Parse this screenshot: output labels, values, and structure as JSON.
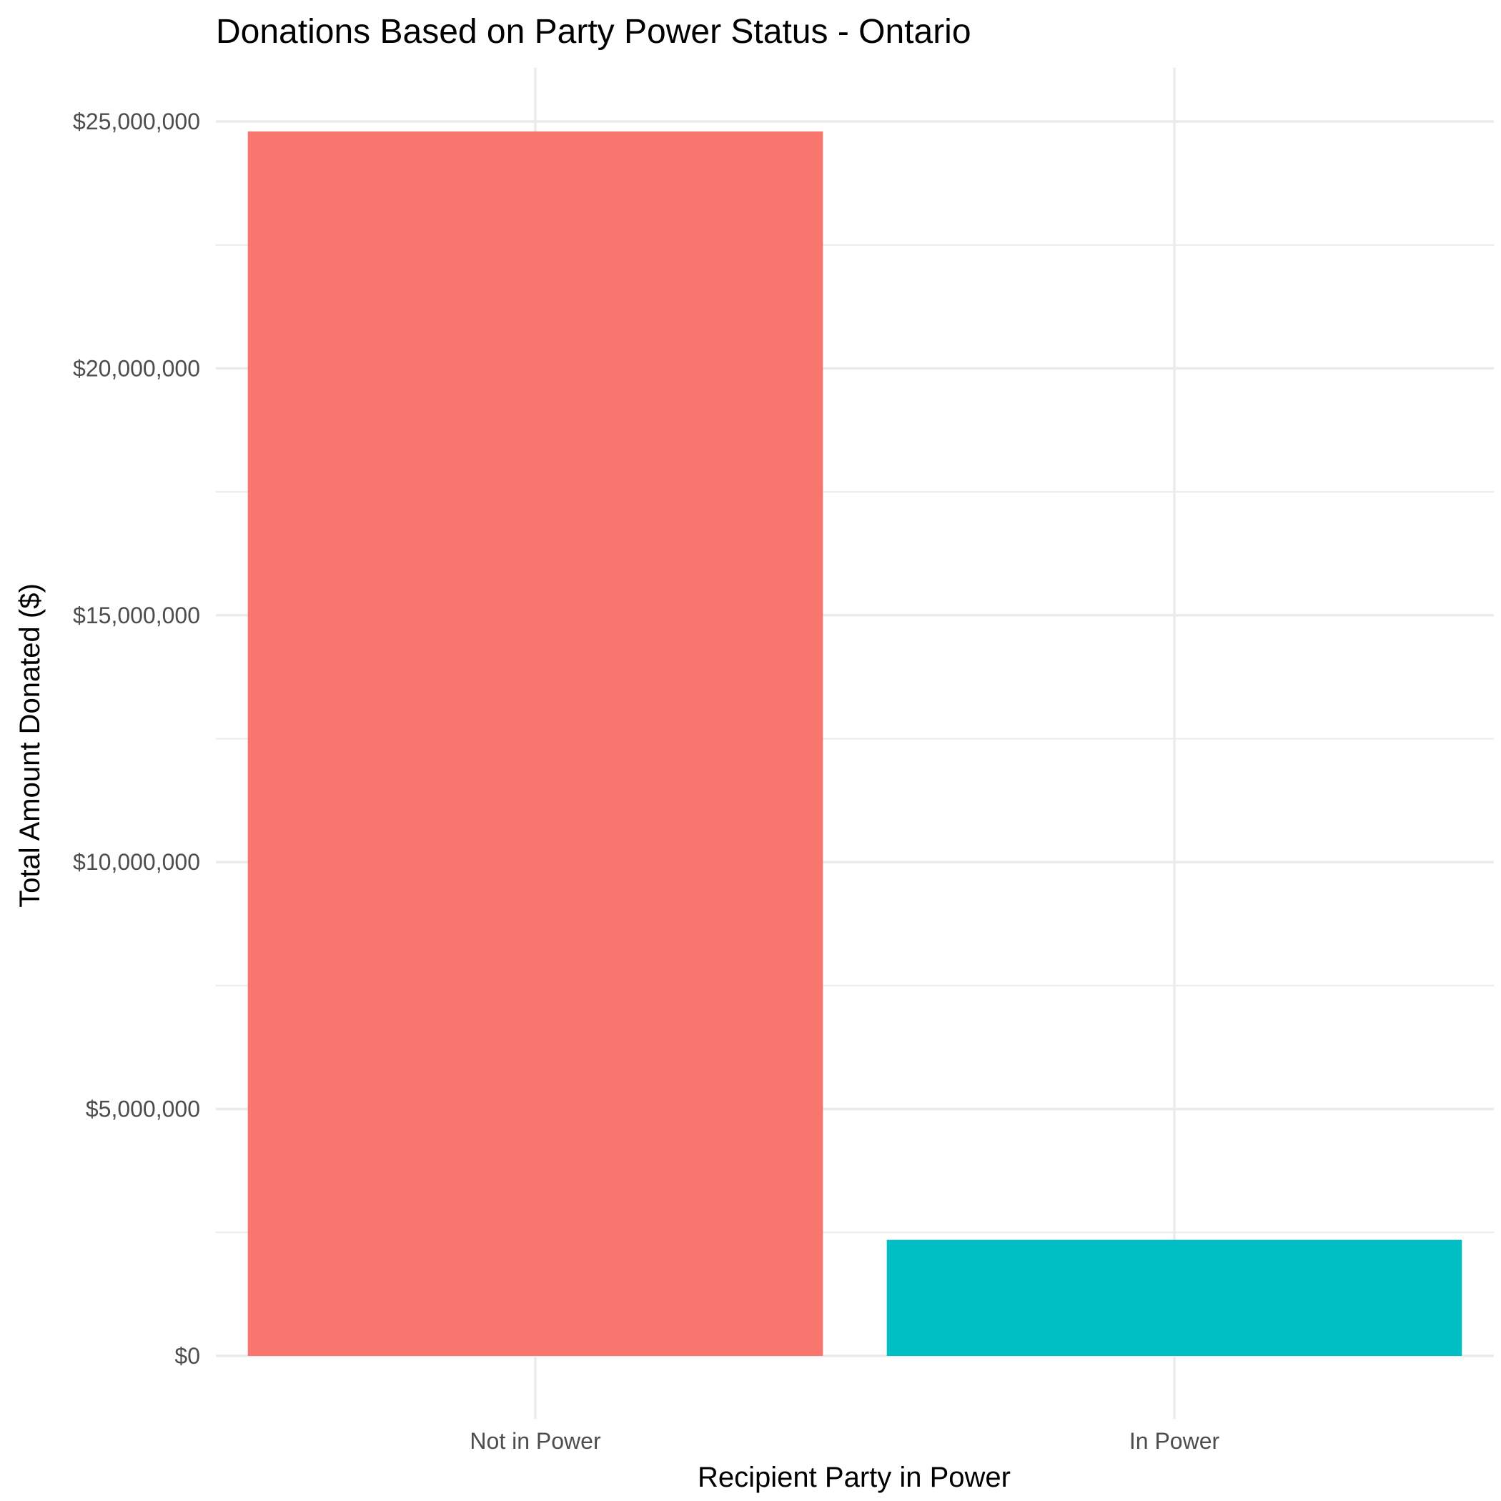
{
  "chart_data": {
    "type": "bar",
    "title": "Donations Based on Party Power Status - Ontario",
    "xlabel": "Recipient Party in Power",
    "ylabel": "Total Amount Donated ($)",
    "categories": [
      "Not in Power",
      "In Power"
    ],
    "values": [
      24800000,
      2350000
    ],
    "colors": [
      "#F8766D",
      "#00BFC4"
    ],
    "ylim": [
      0,
      26000000
    ],
    "y_ticks": [
      0,
      5000000,
      10000000,
      15000000,
      20000000,
      25000000
    ],
    "y_tick_labels": [
      "$0",
      "$5,000,000",
      "$10,000,000",
      "$15,000,000",
      "$20,000,000",
      "$25,000,000"
    ],
    "grid": true,
    "legend": "none"
  }
}
